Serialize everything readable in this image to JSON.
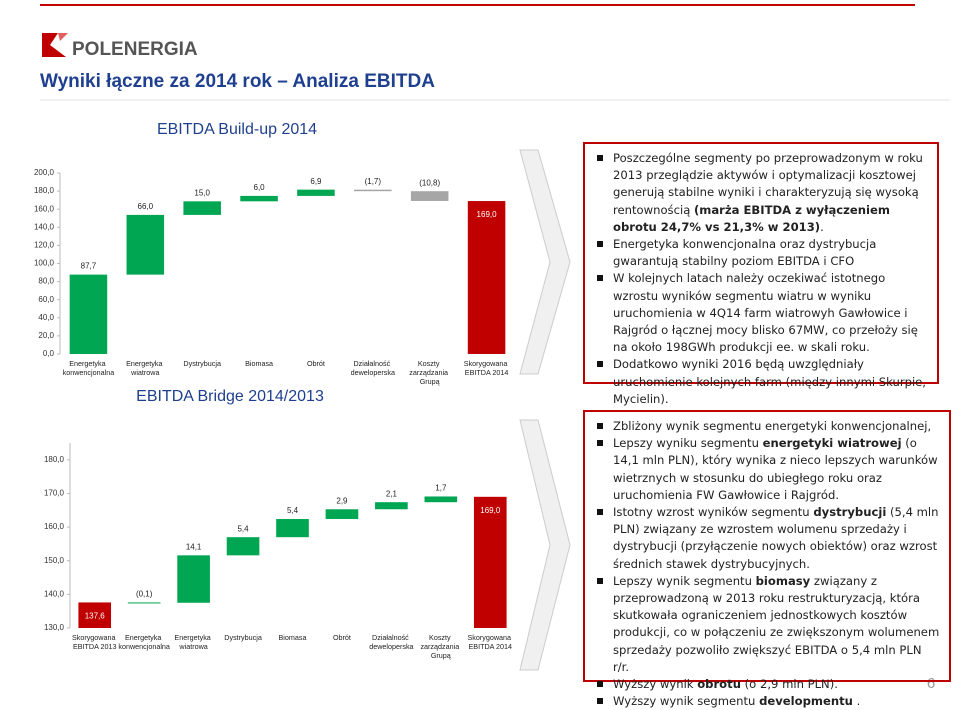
{
  "header": {
    "logo": "POLENERGIA",
    "title": "Wyniki łączne za 2014 rok – Analiza EBITDA",
    "page": "6"
  },
  "chart_data": [
    {
      "type": "waterfall",
      "title": "EBITDA Build-up 2014",
      "categories": [
        "Energetyka konwencjonalna",
        "Energetyka wiatrowa",
        "Dystrybucja",
        "Biomasa",
        "Obrót",
        "Działalność deweloperska",
        "Koszty zarządzania Grupą",
        "Skorygowana EBITDA 2014"
      ],
      "values": [
        87.7,
        66.0,
        15.0,
        6.0,
        6.9,
        -1.7,
        -10.8,
        169.0
      ],
      "value_labels": [
        "87,7",
        "66,0",
        "15,0",
        "6,0",
        "6,9",
        "(1,7)",
        "(10,8)",
        "169,0"
      ],
      "measures": [
        "relative",
        "relative",
        "relative",
        "relative",
        "relative",
        "relative",
        "relative",
        "total"
      ],
      "colors": [
        "#00a651",
        "#00a651",
        "#00a651",
        "#00a651",
        "#00a651",
        "#a6a6a6",
        "#a6a6a6",
        "#c00000"
      ],
      "ylim": [
        0,
        200
      ],
      "yticks": [
        {
          "value": 0,
          "label": "0,0"
        },
        {
          "value": 20,
          "label": "20,0"
        },
        {
          "value": 40,
          "label": "40,0"
        },
        {
          "value": 60,
          "label": "60,0"
        },
        {
          "value": 80,
          "label": "80,0"
        },
        {
          "value": 100,
          "label": "100,0"
        },
        {
          "value": 120,
          "label": "120,0"
        },
        {
          "value": 140,
          "label": "140,0"
        },
        {
          "value": 160,
          "label": "160,0"
        },
        {
          "value": 180,
          "label": "180,0"
        },
        {
          "value": 200,
          "label": "200,0"
        }
      ]
    },
    {
      "type": "waterfall",
      "title": "EBITDA Bridge 2014/2013",
      "categories": [
        "Skorygowana EBITDA 2013",
        "Energetyka konwencjonalna",
        "Energetyka wiatrowa",
        "Dystrybucja",
        "Biomasa",
        "Obrót",
        "Działalność deweloperska",
        "Koszty zarządzania Grupą",
        "Skorygowana EBITDA 2014"
      ],
      "values": [
        137.6,
        -0.1,
        14.1,
        5.4,
        5.4,
        2.9,
        2.1,
        1.7,
        169.0
      ],
      "value_labels": [
        "137,6",
        "(0,1)",
        "14,1",
        "5,4",
        "5,4",
        "2,9",
        "2,1",
        "1,7",
        "169,0"
      ],
      "measures": [
        "total",
        "relative",
        "relative",
        "relative",
        "relative",
        "relative",
        "relative",
        "relative",
        "total"
      ],
      "colors": [
        "#c00000",
        "#00a651",
        "#00a651",
        "#00a651",
        "#00a651",
        "#00a651",
        "#00a651",
        "#00a651",
        "#c00000"
      ],
      "ylim": [
        130,
        185
      ],
      "yticks": [
        {
          "value": 130,
          "label": "130,0"
        },
        {
          "value": 140,
          "label": "140,0"
        },
        {
          "value": 150,
          "label": "150,0"
        },
        {
          "value": 160,
          "label": "160,0"
        },
        {
          "value": 170,
          "label": "170,0"
        },
        {
          "value": 180,
          "label": "180,0"
        }
      ]
    }
  ],
  "box1": {
    "bullets": [
      [
        "Poszczególne segmenty po przeprowadzonym w roku 2013 przeglądzie aktywów i optymalizacji kosztowej generują stabilne wyniki i charakteryzują się wysoką rentownością ",
        "(marża EBITDA z wyłączeniem obrotu 24,7% vs 21,3% w 2013)",
        "."
      ],
      [
        "Energetyka konwencjonalna oraz dystrybucja gwarantują stabilny poziom EBITDA i CFO"
      ],
      [
        "W kolejnych latach należy oczekiwać istotnego wzrostu wyników segmentu wiatru w wyniku uruchomienia w 4Q14 farm wiatrowyh Gawłowice i Rajgród o łącznej mocy blisko 67MW, co przełoży się na około 198GWh produkcji ee. w skali roku."
      ],
      [
        "Dodatkowo wyniki 2016 będą uwzględniały uruchomienie kolejnych farm (między innymi Skurpie, Mycielin)."
      ]
    ]
  },
  "box2": {
    "bullets": [
      [
        "Zbliżony wynik segmentu energetyki konwencjonalnej,"
      ],
      [
        "Lepszy wyniku segmentu ",
        "energetyki wiatrowej",
        " (o 14,1 mln PLN), który wynika z nieco lepszych warunków wietrznych w stosunku do ubiegłego roku oraz uruchomienia FW Gawłowice i Rajgród."
      ],
      [
        "Istotny wzrost wyników segmentu ",
        "dystrybucji",
        " (5,4 mln PLN) związany ze wzrostem wolumenu sprzedaży i dystrybucji (przyłączenie nowych obiektów) oraz wzrost średnich stawek dystrybucyjnych."
      ],
      [
        "Lepszy wynik segmentu ",
        "biomasy",
        " związany z przeprowadzoną w 2013 roku restrukturyzacją, która skutkowała ograniczeniem jednostkowych kosztów produkcji, co w połączeniu ze zwiększonym wolumenem sprzedaży pozwoliło zwiększyć EBITDA o 5,4 mln PLN r/r."
      ],
      [
        "Wyższy wynik ",
        "obrotu",
        " (o 2,9 mln PLN)."
      ],
      [
        "Wyższy wynik segmentu ",
        "developmentu",
        " ."
      ]
    ]
  }
}
